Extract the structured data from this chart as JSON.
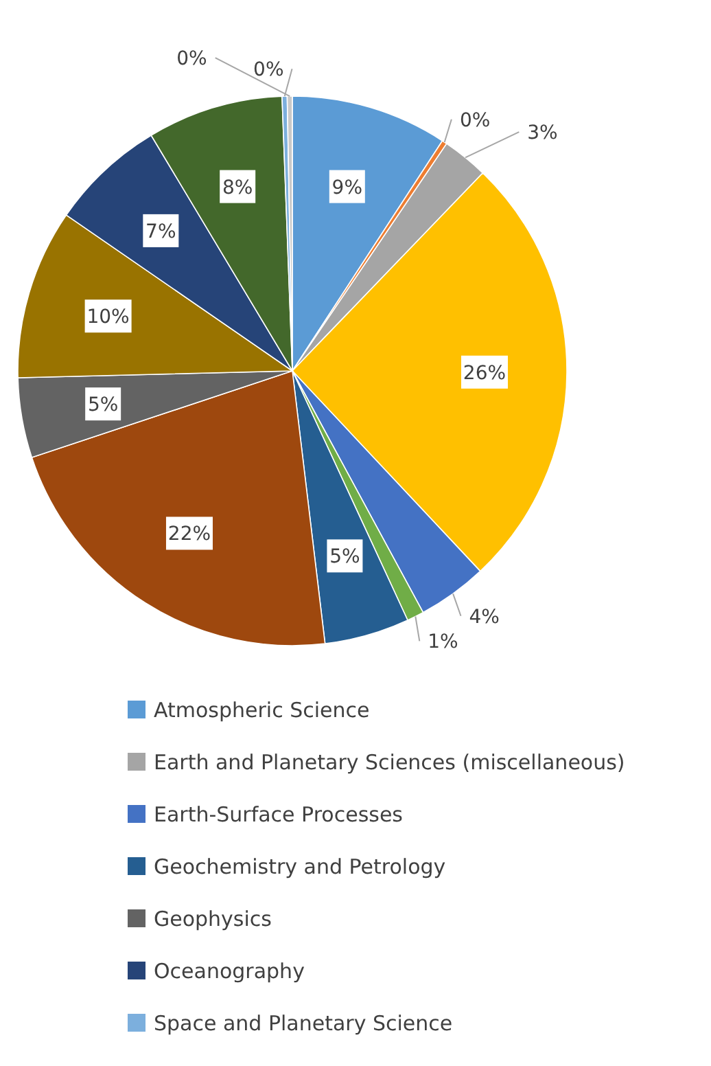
{
  "chart_data": {
    "type": "pie",
    "categories": [
      "Atmospheric Science",
      null,
      "Earth and Planetary Sciences (miscellaneous)",
      null,
      "Earth-Surface Processes",
      null,
      "Geochemistry and Petrology",
      null,
      "Geophysics",
      null,
      "Oceanography",
      null,
      "Space and Planetary Science",
      null
    ],
    "values": [
      9.2,
      0.3,
      2.7,
      25.8,
      4.1,
      1.0,
      5.0,
      21.8,
      4.7,
      10.0,
      6.8,
      8.0,
      0.3,
      0.3
    ],
    "value_labels": [
      "9%",
      "0%",
      "3%",
      "26%",
      "4%",
      "1%",
      "5%",
      "22%",
      "5%",
      "10%",
      "7%",
      "8%",
      "0%",
      "0%"
    ],
    "colors": [
      "#5b9bd5",
      "#ed7d31",
      "#a5a5a5",
      "#ffc000",
      "#4472c4",
      "#70ad47",
      "#255e91",
      "#9e480e",
      "#636363",
      "#997300",
      "#264478",
      "#43682b",
      "#7cafdd",
      "#c9c9c9"
    ],
    "legend": "bottom"
  }
}
